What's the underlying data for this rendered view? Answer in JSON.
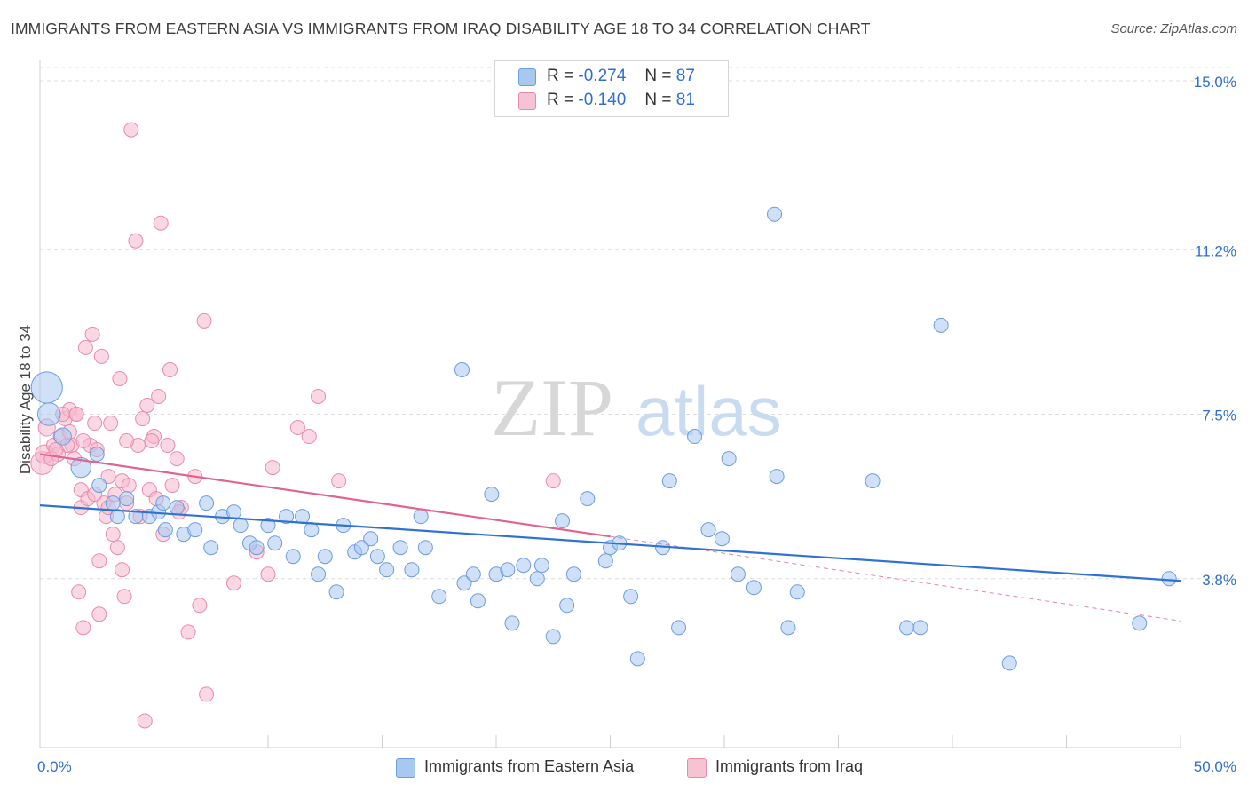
{
  "title": "IMMIGRANTS FROM EASTERN ASIA VS IMMIGRANTS FROM IRAQ DISABILITY AGE 18 TO 34 CORRELATION CHART",
  "source": "Source: ZipAtlas.com",
  "watermark": {
    "zip": "ZIP",
    "atlas": "atlas"
  },
  "legend_stats": [
    {
      "r_label": "R =",
      "r_value": "-0.274",
      "n_label": "N =",
      "n_value": "87"
    },
    {
      "r_label": "R =",
      "r_value": "-0.140",
      "n_label": "N =",
      "n_value": "81"
    }
  ],
  "colors": {
    "blue_fill": "#a9c8f0",
    "blue_stroke": "#6b9de0",
    "blue_line": "#2f73d2",
    "pink_fill": "#f6b8cc",
    "pink_stroke": "#ea8aab",
    "pink_line": "#e26391",
    "axis_text": "#2e6fd1",
    "grid": "#dcdcdc"
  },
  "chart_data": {
    "type": "scatter",
    "title": "IMMIGRANTS FROM EASTERN ASIA VS IMMIGRANTS FROM IRAQ DISABILITY AGE 18 TO 34 CORRELATION CHART",
    "xlabel": "",
    "ylabel": "Disability Age 18 to 34",
    "xlim": [
      0,
      50
    ],
    "ylim": [
      0,
      15.3
    ],
    "x_tick_labels": [
      "0.0%",
      "50.0%"
    ],
    "y_ticks": [
      3.8,
      7.5,
      11.2,
      15.0
    ],
    "y_tick_labels": [
      "3.8%",
      "7.5%",
      "11.2%",
      "15.0%"
    ],
    "grid": true,
    "legend_position": "top-center and bottom",
    "series": [
      {
        "name": "Immigrants from Eastern Asia",
        "color": "blue",
        "trend": {
          "x": [
            0,
            50
          ],
          "y": [
            5.45,
            3.75
          ]
        },
        "points": [
          [
            0.3,
            8.1,
            2.2
          ],
          [
            0.4,
            7.5,
            1.6
          ],
          [
            1.0,
            7.0,
            1.2
          ],
          [
            1.8,
            6.3,
            1.4
          ],
          [
            2.5,
            6.6,
            1.0
          ],
          [
            2.6,
            5.9,
            1.0
          ],
          [
            3.2,
            5.5,
            1.0
          ],
          [
            3.4,
            5.2,
            1.0
          ],
          [
            3.8,
            5.6,
            1.0
          ],
          [
            4.2,
            5.2,
            1.0
          ],
          [
            4.8,
            5.2,
            1.0
          ],
          [
            5.2,
            5.3,
            1.0
          ],
          [
            5.4,
            5.5,
            1.0
          ],
          [
            5.5,
            4.9,
            1.0
          ],
          [
            6.0,
            5.4,
            1.0
          ],
          [
            6.3,
            4.8,
            1.0
          ],
          [
            6.8,
            4.9,
            1.0
          ],
          [
            7.3,
            5.5,
            1.0
          ],
          [
            7.5,
            4.5,
            1.0
          ],
          [
            8.0,
            5.2,
            1.0
          ],
          [
            8.5,
            5.3,
            1.0
          ],
          [
            8.8,
            5.0,
            1.0
          ],
          [
            9.2,
            4.6,
            1.0
          ],
          [
            9.5,
            4.5,
            1.0
          ],
          [
            10.0,
            5.0,
            1.0
          ],
          [
            10.3,
            4.6,
            1.0
          ],
          [
            10.8,
            5.2,
            1.0
          ],
          [
            11.1,
            4.3,
            1.0
          ],
          [
            11.5,
            5.2,
            1.0
          ],
          [
            11.9,
            4.9,
            1.0
          ],
          [
            12.2,
            3.9,
            1.0
          ],
          [
            12.5,
            4.3,
            1.0
          ],
          [
            13.0,
            3.5,
            1.0
          ],
          [
            13.3,
            5.0,
            1.0
          ],
          [
            13.8,
            4.4,
            1.0
          ],
          [
            14.1,
            4.5,
            1.0
          ],
          [
            14.5,
            4.7,
            1.0
          ],
          [
            14.8,
            4.3,
            1.0
          ],
          [
            15.2,
            4.0,
            1.0
          ],
          [
            15.8,
            4.5,
            1.0
          ],
          [
            16.3,
            4.0,
            1.0
          ],
          [
            16.7,
            5.2,
            1.0
          ],
          [
            16.9,
            4.5,
            1.0
          ],
          [
            17.5,
            3.4,
            1.0
          ],
          [
            18.5,
            8.5,
            1.0
          ],
          [
            18.6,
            3.7,
            1.0
          ],
          [
            19.0,
            3.9,
            1.0
          ],
          [
            19.2,
            3.3,
            1.0
          ],
          [
            19.8,
            5.7,
            1.0
          ],
          [
            20.0,
            3.9,
            1.0
          ],
          [
            20.5,
            4.0,
            1.0
          ],
          [
            20.7,
            2.8,
            1.0
          ],
          [
            21.2,
            4.1,
            1.0
          ],
          [
            21.8,
            3.8,
            1.0
          ],
          [
            22.0,
            4.1,
            1.0
          ],
          [
            22.5,
            2.5,
            1.0
          ],
          [
            22.9,
            5.1,
            1.0
          ],
          [
            23.1,
            3.2,
            1.0
          ],
          [
            23.4,
            3.9,
            1.0
          ],
          [
            24.0,
            5.6,
            1.0
          ],
          [
            24.8,
            4.2,
            1.0
          ],
          [
            25.0,
            4.5,
            1.0
          ],
          [
            25.4,
            4.6,
            1.0
          ],
          [
            25.9,
            3.4,
            1.0
          ],
          [
            26.2,
            2.0,
            1.0
          ],
          [
            27.3,
            4.5,
            1.0
          ],
          [
            27.6,
            6.0,
            1.0
          ],
          [
            28.0,
            2.7,
            1.0
          ],
          [
            28.7,
            7.0,
            1.0
          ],
          [
            29.3,
            4.9,
            1.0
          ],
          [
            29.9,
            4.7,
            1.0
          ],
          [
            30.2,
            6.5,
            1.0
          ],
          [
            30.6,
            3.9,
            1.0
          ],
          [
            31.3,
            3.6,
            1.0
          ],
          [
            32.2,
            12.0,
            1.0
          ],
          [
            32.3,
            6.1,
            1.0
          ],
          [
            32.8,
            2.7,
            1.0
          ],
          [
            33.2,
            3.5,
            1.0
          ],
          [
            36.5,
            6.0,
            1.0
          ],
          [
            38.0,
            2.7,
            1.0
          ],
          [
            38.6,
            2.7,
            1.0
          ],
          [
            39.5,
            9.5,
            1.0
          ],
          [
            42.5,
            1.9,
            1.0
          ],
          [
            48.2,
            2.8,
            1.0
          ],
          [
            49.5,
            3.8,
            1.0
          ]
        ]
      },
      {
        "name": "Immigrants from Iraq",
        "color": "pink",
        "trend": {
          "x": [
            0,
            25
          ],
          "y": [
            6.6,
            4.75
          ]
        },
        "trend_dashed": {
          "x": [
            25,
            50
          ],
          "y": [
            4.75,
            2.85
          ]
        },
        "points": [
          [
            0.1,
            6.4,
            1.6
          ],
          [
            0.2,
            6.6,
            1.3
          ],
          [
            0.3,
            7.2,
            1.2
          ],
          [
            0.6,
            6.8,
            1.0
          ],
          [
            0.9,
            7.0,
            1.0
          ],
          [
            1.1,
            7.4,
            1.0
          ],
          [
            1.3,
            7.6,
            1.0
          ],
          [
            1.4,
            6.8,
            1.0
          ],
          [
            1.6,
            7.5,
            1.0
          ],
          [
            1.8,
            5.8,
            1.0
          ],
          [
            1.5,
            6.5,
            1.0
          ],
          [
            1.7,
            3.5,
            1.0
          ],
          [
            1.8,
            5.4,
            1.0
          ],
          [
            1.9,
            2.7,
            1.0
          ],
          [
            2.0,
            9.0,
            1.0
          ],
          [
            2.2,
            6.8,
            1.0
          ],
          [
            2.3,
            9.3,
            1.0
          ],
          [
            2.4,
            7.3,
            1.0
          ],
          [
            2.5,
            6.7,
            1.0
          ],
          [
            2.6,
            3.0,
            1.0
          ],
          [
            2.7,
            8.8,
            1.0
          ],
          [
            2.8,
            5.5,
            1.0
          ],
          [
            2.9,
            5.2,
            1.0
          ],
          [
            3.0,
            6.1,
            1.0
          ],
          [
            3.1,
            7.3,
            1.0
          ],
          [
            3.2,
            4.8,
            1.0
          ],
          [
            3.3,
            5.7,
            1.0
          ],
          [
            3.4,
            4.5,
            1.0
          ],
          [
            3.5,
            8.3,
            1.0
          ],
          [
            3.6,
            4.0,
            1.0
          ],
          [
            3.6,
            6.0,
            1.0
          ],
          [
            3.7,
            3.4,
            1.0
          ],
          [
            3.8,
            5.5,
            1.0
          ],
          [
            3.9,
            5.9,
            1.0
          ],
          [
            4.0,
            13.9,
            1.0
          ],
          [
            4.2,
            11.4,
            1.0
          ],
          [
            4.3,
            6.8,
            1.0
          ],
          [
            4.4,
            5.2,
            1.0
          ],
          [
            4.5,
            7.4,
            1.0
          ],
          [
            4.7,
            7.7,
            1.0
          ],
          [
            4.8,
            5.8,
            1.0
          ],
          [
            5.0,
            7.0,
            1.0
          ],
          [
            5.1,
            5.6,
            1.0
          ],
          [
            5.2,
            7.9,
            1.0
          ],
          [
            5.3,
            11.8,
            1.0
          ],
          [
            5.4,
            4.8,
            1.0
          ],
          [
            5.6,
            6.8,
            1.0
          ],
          [
            5.7,
            8.5,
            1.0
          ],
          [
            5.8,
            5.9,
            1.0
          ],
          [
            6.0,
            6.5,
            1.0
          ],
          [
            6.2,
            5.4,
            1.0
          ],
          [
            6.5,
            2.6,
            1.0
          ],
          [
            6.8,
            6.1,
            1.0
          ],
          [
            7.0,
            3.2,
            1.0
          ],
          [
            7.2,
            9.6,
            1.0
          ],
          [
            7.3,
            1.2,
            1.0
          ],
          [
            8.5,
            3.7,
            1.0
          ],
          [
            9.5,
            4.4,
            1.0
          ],
          [
            10.0,
            3.9,
            1.0
          ],
          [
            10.2,
            6.3,
            1.0
          ],
          [
            11.3,
            7.2,
            1.0
          ],
          [
            11.8,
            7.0,
            1.0
          ],
          [
            12.2,
            7.9,
            1.0
          ],
          [
            13.1,
            6.0,
            1.0
          ],
          [
            22.5,
            6.0,
            1.0
          ],
          [
            4.6,
            0.6,
            1.0
          ],
          [
            1.0,
            7.5,
            1.0
          ],
          [
            1.2,
            6.8,
            1.0
          ],
          [
            0.8,
            6.6,
            1.0
          ],
          [
            2.1,
            5.6,
            1.0
          ],
          [
            1.6,
            7.5,
            1.0
          ],
          [
            2.4,
            5.7,
            1.0
          ],
          [
            0.5,
            6.5,
            1.0
          ],
          [
            3.0,
            5.4,
            1.0
          ],
          [
            4.9,
            6.9,
            1.0
          ],
          [
            0.7,
            6.7,
            1.0
          ],
          [
            1.3,
            7.1,
            1.0
          ],
          [
            6.1,
            5.3,
            1.0
          ],
          [
            2.6,
            4.2,
            1.0
          ],
          [
            1.9,
            6.9,
            1.0
          ],
          [
            3.8,
            6.9,
            1.0
          ]
        ]
      }
    ]
  },
  "legend_bottom": [
    {
      "label": "Immigrants from Eastern Asia"
    },
    {
      "label": "Immigrants from Iraq"
    }
  ]
}
